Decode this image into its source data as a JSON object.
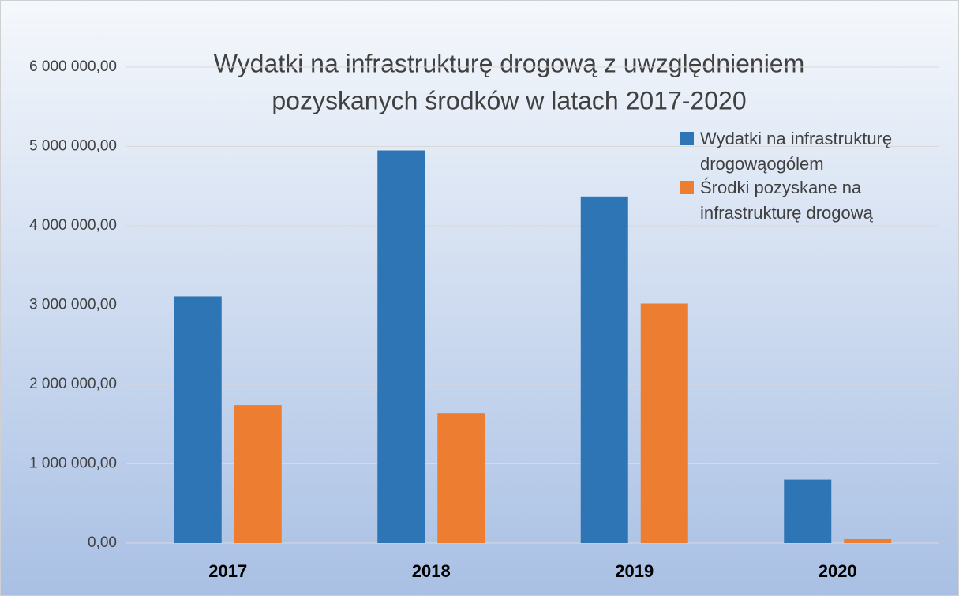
{
  "chart_data": {
    "type": "bar",
    "title": [
      "Wydatki na infrastrukturę drogową z uwzględnieniem",
      "pozyskanych środków w latach 2017-2020"
    ],
    "categories": [
      "2017",
      "2018",
      "2019",
      "2020"
    ],
    "series": [
      {
        "name": "Wydatki na infrastrukturę drogowąogólem",
        "color": "#2e75b6",
        "values": [
          3110000,
          4950000,
          4370000,
          800000
        ]
      },
      {
        "name": "Środki pozyskane na infrastrukturę drogową",
        "color": "#ed7d31",
        "values": [
          1740000,
          1640000,
          3020000,
          50000
        ]
      }
    ],
    "ylim": [
      0,
      6000000
    ],
    "yticks": [
      {
        "value": 0,
        "label": "0,00"
      },
      {
        "value": 1000000,
        "label": "1 000 000,00"
      },
      {
        "value": 2000000,
        "label": "2 000 000,00"
      },
      {
        "value": 3000000,
        "label": "3 000 000,00"
      },
      {
        "value": 4000000,
        "label": "4 000 000,00"
      },
      {
        "value": 5000000,
        "label": "5 000 000,00"
      },
      {
        "value": 6000000,
        "label": "6 000 000,00"
      }
    ],
    "grid": true,
    "legend": "top-right"
  }
}
